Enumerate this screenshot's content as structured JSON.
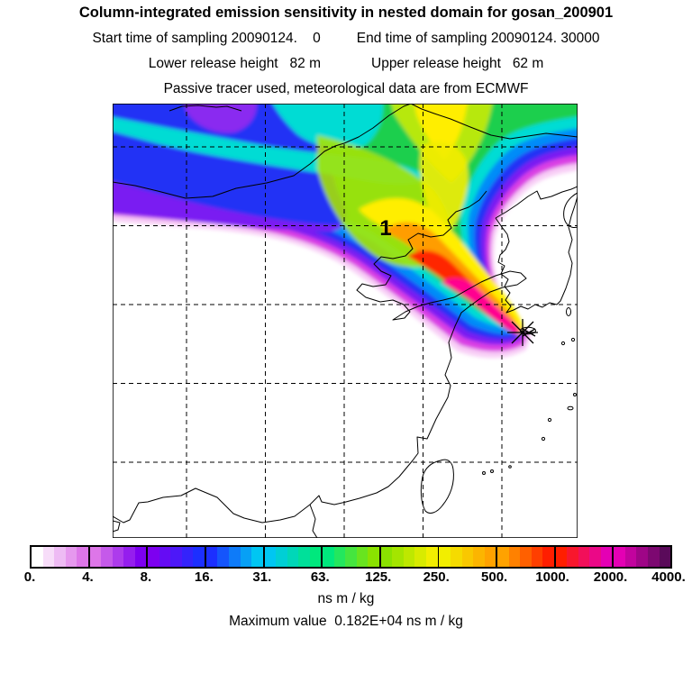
{
  "header": {
    "title": "Column-integrated emission sensitivity in nested domain for gosan_200901",
    "start_time": "Start time of sampling 20090124.    0",
    "end_time": "End time of sampling 20090124. 30000",
    "lower_release": "Lower release height   82 m",
    "upper_release": "Upper release height   62 m",
    "tracer_note": "Passive tracer used, meteorological data are from ECMWF"
  },
  "map": {
    "region_label": "1",
    "marker_name": "gosan-receptor-asterisk"
  },
  "colorbar": {
    "tick_labels": [
      "0.",
      "4.",
      "8.",
      "16.",
      "31.",
      "63.",
      "125.",
      "250.",
      "500.",
      "1000.",
      "2000.",
      "4000."
    ],
    "boundary_colors": [
      "#ffffff",
      "#dd76e8",
      "#7d00f0",
      "#1c2fff",
      "#00c6f2",
      "#00e87d",
      "#8ae200",
      "#f2ee00",
      "#ffa200",
      "#ff1e00",
      "#e400b4",
      "#5a0a5a"
    ],
    "steps_per_segment": 5,
    "units": "ns m / kg",
    "max_value_text": "Maximum value  0.182E+04 ns m / kg"
  },
  "chart_data": {
    "type": "heatmap",
    "title": "Column-integrated emission sensitivity in nested domain for gosan_200901",
    "subtitle_lines": [
      "Start time of sampling 20090124.    0    End time of sampling 20090124. 30000",
      "Lower release height   82 m      Upper release height   62 m",
      "Passive tracer used, meteorological data are from ECMWF"
    ],
    "colorbar_levels": [
      0,
      4,
      8,
      16,
      31,
      63,
      125,
      250,
      500,
      1000,
      2000,
      4000
    ],
    "units": "ns m / kg",
    "max_value_label": "0.182E+04",
    "max_value": 1820,
    "receptor": "gosan_200901",
    "start_time": "20090124. 0",
    "end_time": "20090124. 30000",
    "lower_release_height_m": 82,
    "upper_release_height_m": 62,
    "meteorology": "ECMWF",
    "plume_label": "1",
    "description": "Emission-sensitivity footprint plume over East Asia: highest values (red/magenta, 500-2000 ns m/kg) form a narrow transport core ending at the Gosan receptor (asterisk on Jeju Island); moderate values (green/yellow, 63-250) fan northwest over the Bohai region and Mongolia; low values (blue/violet, 4-16) fringe the northwest edge; white areas ~0."
  }
}
